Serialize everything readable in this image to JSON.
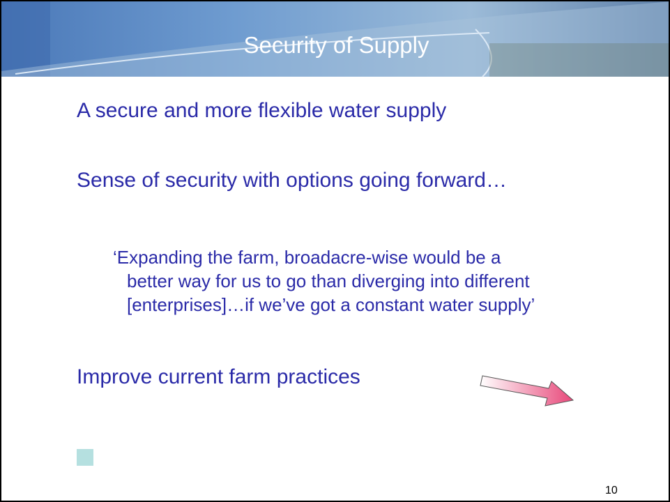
{
  "header": {
    "title": "Security of Supply"
  },
  "bullets": [
    "A secure and more flexible water supply",
    "Sense of security with options going forward…",
    "Improve current farm practices"
  ],
  "quote": [
    "‘Expanding the farm, broadacre-wise would be a",
    "better way for us to go than diverging into different",
    "[enterprises]…if we’ve got a constant water supply’"
  ],
  "page_number": "10"
}
